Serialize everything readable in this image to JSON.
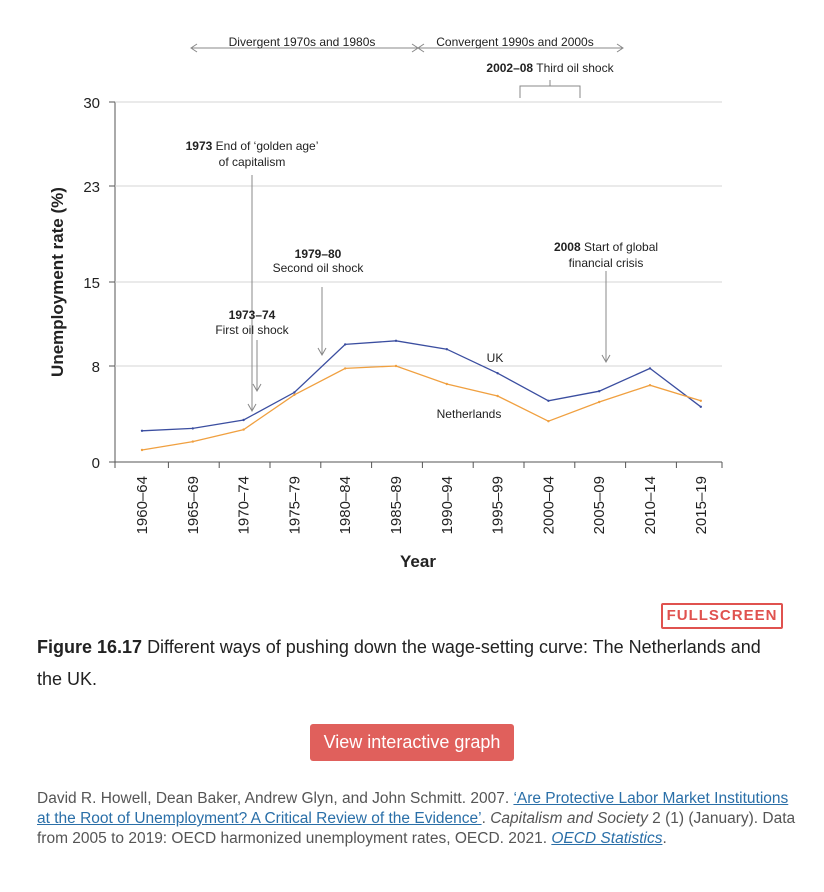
{
  "chart_data": {
    "type": "line",
    "xlabel": "Year",
    "ylabel": "Unemployment rate (%)",
    "categories": [
      "1960–64",
      "1965–69",
      "1970–74",
      "1975–79",
      "1980–84",
      "1985–89",
      "1990–94",
      "1995–99",
      "2000–04",
      "2005–09",
      "2010–14",
      "2015–19"
    ],
    "yticks": [
      "0",
      "8",
      "15",
      "23",
      "30"
    ],
    "ylim": [
      0,
      30
    ],
    "series": [
      {
        "name": "UK",
        "color": "#3b4ea0",
        "values": [
          2.6,
          2.8,
          3.5,
          5.8,
          9.8,
          10.1,
          9.4,
          7.4,
          5.1,
          5.9,
          7.8,
          4.6
        ]
      },
      {
        "name": "Netherlands",
        "color": "#f0a040",
        "values": [
          1.0,
          1.7,
          2.7,
          5.6,
          7.8,
          8.0,
          6.5,
          5.5,
          3.4,
          5.0,
          6.4,
          5.1
        ]
      }
    ],
    "periods": [
      {
        "label": "Divergent 1970s and 1980s"
      },
      {
        "label": "Convergent 1990s and 2000s"
      }
    ],
    "annotations": [
      {
        "bold": "2002–08",
        "text": "Third oil shock"
      },
      {
        "bold": "1973",
        "text": "End of ‘golden age’",
        "text2": "of capitalism"
      },
      {
        "bold": "1979–80",
        "text": "Second oil shock"
      },
      {
        "bold": "1973–74",
        "text": "First oil shock"
      },
      {
        "bold": "2008",
        "text": "Start of global",
        "text2": "financial crisis"
      }
    ]
  },
  "fullscreen_label": "FULLSCREEN",
  "caption": {
    "figure": "Figure 16.17",
    "text": "Different ways of pushing down the wage-setting curve: The Netherlands and the UK."
  },
  "interactive_button": "View interactive graph",
  "source": {
    "authors": "David R. Howell, Dean Baker, Andrew Glyn, and John Schmitt. 2007. ",
    "link_title": "‘Are Protective Labor Market Institutions at the Root of Unemployment? A Critical Review of the Evidence’",
    "after_link": ". ",
    "journal": "Capitalism and Society",
    "details": " 2 (1) (January). Data from 2005 to 2019: OECD harmonized unemployment rates, OECD. 2021. ",
    "link2": "OECD Statistics",
    "end": "."
  },
  "colors": {
    "accent": "#e0524f",
    "uk": "#3b4ea0",
    "netherlands": "#f0a040"
  }
}
